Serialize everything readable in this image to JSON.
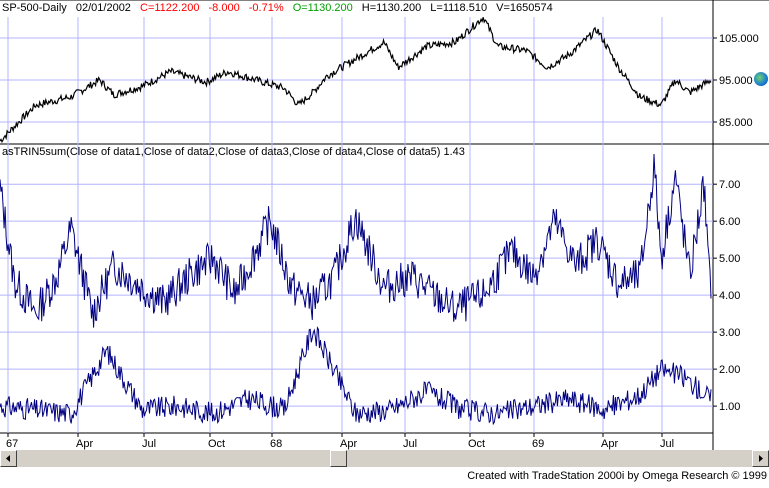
{
  "header": {
    "symbol": "SP-500-Daily",
    "date": "02/01/2002",
    "close": "C=1122.200",
    "change": "-8.000",
    "pct_change": "-0.71%",
    "open": "O=1130.200",
    "high": "H=1130.200",
    "low": "L=1118.510",
    "volume": "V=1650574"
  },
  "indicator_label": "asTRIN5sum(Close of data1,Close of data2,Close of data3,Close of data4,Close of data5)  1.43",
  "price_axis": [
    "105.000",
    "95.000",
    "85.000"
  ],
  "ind_axis": [
    "7.00",
    "6.00",
    "5.00",
    "4.00",
    "3.00",
    "2.00",
    "1.00"
  ],
  "x_axis": [
    "67",
    "Apr",
    "Jul",
    "Oct",
    "68",
    "Apr",
    "Jul",
    "Oct",
    "69",
    "Apr",
    "Jul"
  ],
  "footer": "Created with TradeStation 2000i by Omega Research © 1999",
  "colors": {
    "price_line": "#000000",
    "indicator_line": "#000080",
    "grid": "#b4b4ff",
    "negative": "#ff0000",
    "open_text": "#00a000",
    "scroll_bg": "#d4d0c8"
  },
  "chart_data": [
    {
      "type": "line",
      "title": "SP-500-Daily",
      "y_ticks": [
        85,
        95,
        105
      ],
      "ylim": [
        80,
        110
      ],
      "x_ticks": [
        "67",
        "Apr",
        "Jul",
        "Oct",
        "68",
        "Apr",
        "Jul",
        "Oct",
        "69",
        "Apr",
        "Jul"
      ],
      "series": [
        {
          "x": [
            0,
            0.05,
            0.1,
            0.14,
            0.16,
            0.2,
            0.24,
            0.29,
            0.32,
            0.36,
            0.4,
            0.42,
            0.44,
            0.46,
            0.5,
            0.54,
            0.56,
            0.6,
            0.64,
            0.68,
            0.7,
            0.74,
            0.77,
            0.8,
            0.84,
            0.87,
            0.9,
            0.93,
            0.95,
            0.97,
            1
          ],
          "values": [
            80.5,
            89,
            91,
            95,
            91.5,
            93.5,
            97,
            94.5,
            97,
            95,
            93,
            89,
            92,
            96,
            100,
            104,
            98,
            103,
            104,
            110,
            103,
            102,
            98,
            101,
            107,
            98,
            91,
            89,
            95,
            92,
            95
          ]
        }
      ]
    },
    {
      "type": "line",
      "title": "asTRIN5sum(Close of data1,Close of data2,Close of data3,Close of data4,Close of data5)",
      "y_ticks": [
        1,
        2,
        3,
        4,
        5,
        6,
        7
      ],
      "ylim": [
        0.3,
        7.6
      ],
      "x_ticks": [
        "67",
        "Apr",
        "Jul",
        "Oct",
        "68",
        "Apr",
        "Jul",
        "Oct",
        "69",
        "Apr",
        "Jul"
      ],
      "series": [
        {
          "name": "asTRIN5sum",
          "x": [
            0,
            0.02,
            0.05,
            0.08,
            0.1,
            0.13,
            0.16,
            0.2,
            0.23,
            0.27,
            0.3,
            0.33,
            0.38,
            0.41,
            0.44,
            0.47,
            0.5,
            0.54,
            0.58,
            0.61,
            0.64,
            0.68,
            0.72,
            0.75,
            0.78,
            0.81,
            0.84,
            0.87,
            0.9,
            0.92,
            0.93,
            0.95,
            0.97,
            0.99,
            1
          ],
          "values": [
            6.9,
            4.4,
            3.5,
            4.5,
            5.8,
            3.5,
            4.8,
            4.2,
            3.8,
            4.6,
            5.0,
            4.0,
            6.0,
            4.2,
            3.8,
            4.5,
            6.1,
            4.2,
            4.5,
            4.0,
            3.6,
            4.0,
            5.2,
            4.5,
            6.0,
            4.8,
            5.5,
            4.3,
            4.5,
            7.5,
            5.0,
            7.2,
            4.5,
            7.0,
            3.8
          ]
        },
        {
          "name": "TRIN",
          "x": [
            0,
            0.05,
            0.1,
            0.15,
            0.2,
            0.25,
            0.3,
            0.35,
            0.4,
            0.44,
            0.5,
            0.55,
            0.6,
            0.65,
            0.7,
            0.75,
            0.8,
            0.85,
            0.9,
            0.93,
            0.96,
            1
          ],
          "values": [
            1.0,
            0.9,
            0.8,
            2.5,
            0.9,
            1.0,
            0.8,
            1.2,
            0.9,
            3.1,
            0.8,
            0.9,
            1.4,
            0.9,
            0.8,
            1.0,
            1.2,
            0.9,
            1.3,
            2.0,
            1.8,
            1.2
          ]
        }
      ]
    }
  ]
}
